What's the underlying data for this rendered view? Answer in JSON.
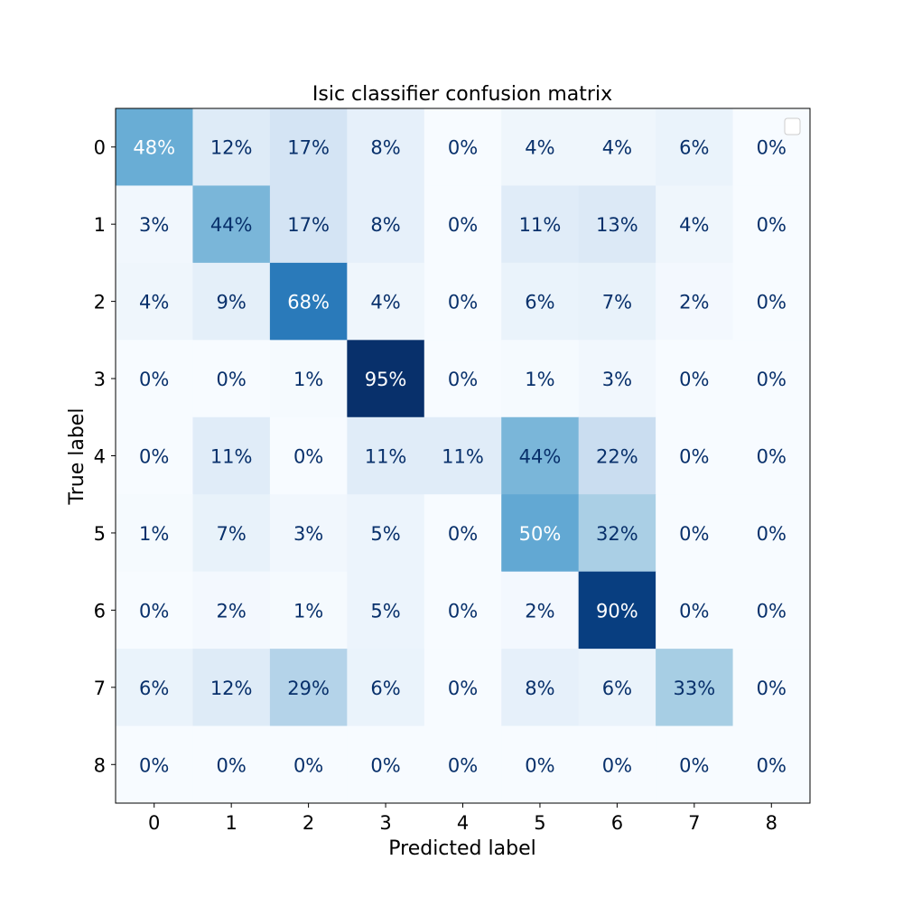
{
  "chart_data": {
    "type": "heatmap",
    "title": "Isic classifier confusion matrix",
    "xlabel": "Predicted label",
    "ylabel": "True label",
    "x_ticks": [
      "0",
      "1",
      "2",
      "3",
      "4",
      "5",
      "6",
      "7",
      "8"
    ],
    "y_ticks": [
      "0",
      "1",
      "2",
      "3",
      "4",
      "5",
      "6",
      "7",
      "8"
    ],
    "colormap": "Blues",
    "value_range": [
      0,
      95
    ],
    "cell_labels": [
      [
        "48%",
        "12%",
        "17%",
        "8%",
        "0%",
        "4%",
        "4%",
        "6%",
        "0%"
      ],
      [
        "3%",
        "44%",
        "17%",
        "8%",
        "0%",
        "11%",
        "13%",
        "4%",
        "0%"
      ],
      [
        "4%",
        "9%",
        "68%",
        "4%",
        "0%",
        "6%",
        "7%",
        "2%",
        "0%"
      ],
      [
        "0%",
        "0%",
        "1%",
        "95%",
        "0%",
        "1%",
        "3%",
        "0%",
        "0%"
      ],
      [
        "0%",
        "11%",
        "0%",
        "11%",
        "11%",
        "44%",
        "22%",
        "0%",
        "0%"
      ],
      [
        "1%",
        "7%",
        "3%",
        "5%",
        "0%",
        "50%",
        "32%",
        "0%",
        "0%"
      ],
      [
        "0%",
        "2%",
        "1%",
        "5%",
        "0%",
        "2%",
        "90%",
        "0%",
        "0%"
      ],
      [
        "6%",
        "12%",
        "29%",
        "6%",
        "0%",
        "8%",
        "6%",
        "33%",
        "0%"
      ],
      [
        "0%",
        "0%",
        "0%",
        "0%",
        "0%",
        "0%",
        "0%",
        "0%",
        "0%"
      ]
    ],
    "values": [
      [
        48,
        12,
        17,
        8,
        0,
        4,
        4,
        6,
        0
      ],
      [
        3,
        44,
        17,
        8,
        0,
        11,
        13,
        4,
        0
      ],
      [
        4,
        9,
        68,
        4,
        0,
        6,
        7,
        2,
        0
      ],
      [
        0,
        0,
        1,
        95,
        0,
        1,
        3,
        0,
        0
      ],
      [
        0,
        11,
        0,
        11,
        11,
        44,
        22,
        0,
        0
      ],
      [
        1,
        7,
        3,
        5,
        0,
        50,
        32,
        0,
        0
      ],
      [
        0,
        2,
        1,
        5,
        0,
        2,
        90,
        0,
        0
      ],
      [
        6,
        12,
        29,
        6,
        0,
        8,
        6,
        33,
        0
      ],
      [
        0,
        0,
        0,
        0,
        0,
        0,
        0,
        0,
        0
      ]
    ],
    "legend": "empty-box-top-right",
    "grid": false
  }
}
